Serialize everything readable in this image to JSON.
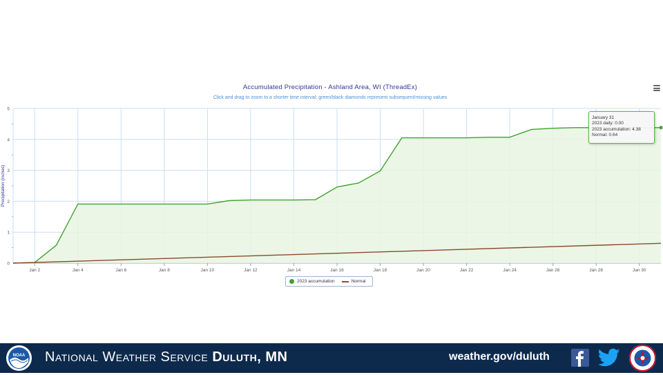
{
  "chart_data": {
    "type": "area",
    "title": "Accumulated Precipitation - Ashland Area, WI (ThreadEx)",
    "subtitle": "Click and drag to zoom to a shorter time interval; green/black diamonds represent subsequent/missing values",
    "ylabel": "Precipitation (inches)",
    "ylim": [
      0,
      5
    ],
    "yticks": [
      0,
      1,
      2,
      3,
      4,
      5
    ],
    "xlim": [
      1,
      31
    ],
    "xticks": [
      2,
      4,
      6,
      8,
      10,
      12,
      14,
      16,
      18,
      20,
      22,
      24,
      26,
      28,
      30
    ],
    "xtick_labels": [
      "Jan 2",
      "Jan 4",
      "Jan 6",
      "Jan 8",
      "Jan 10",
      "Jan 12",
      "Jan 14",
      "Jan 16",
      "Jan 18",
      "Jan 20",
      "Jan 22",
      "Jan 24",
      "Jan 26",
      "Jan 28",
      "Jan 30"
    ],
    "grid": true,
    "legend_position": "bottom-center",
    "series": [
      {
        "name": "2023 accumulation",
        "color": "#3ea32d",
        "fill": "#e8f4e2",
        "x": [
          1,
          2,
          3,
          4,
          5,
          6,
          7,
          8,
          9,
          10,
          11,
          12,
          13,
          14,
          15,
          16,
          17,
          18,
          19,
          20,
          21,
          22,
          23,
          24,
          25,
          26,
          27,
          28,
          29,
          30,
          31
        ],
        "values": [
          0.0,
          0.02,
          0.58,
          1.91,
          1.91,
          1.91,
          1.91,
          1.91,
          1.91,
          1.91,
          2.02,
          2.04,
          2.04,
          2.04,
          2.05,
          2.46,
          2.59,
          2.98,
          4.05,
          4.05,
          4.05,
          4.05,
          4.07,
          4.07,
          4.32,
          4.36,
          4.38,
          4.38,
          4.38,
          4.38,
          4.38
        ]
      },
      {
        "name": "Normal",
        "color": "#8b4a2b",
        "x": [
          1,
          31
        ],
        "values": [
          0.0,
          0.64
        ]
      }
    ],
    "tooltip": {
      "header": "January 31",
      "lines": [
        "2023 daily: 0.00",
        "2023 accumulation: 4.38",
        "Normal: 0.64"
      ]
    }
  },
  "footer": {
    "org_prefix": "National Weather Service",
    "org_office": "Duluth, MN",
    "url": "weather.gov/duluth",
    "noaa_logo_text": "NOAA",
    "icons": [
      "noaa-logo",
      "facebook-icon",
      "twitter-icon",
      "nws-logo"
    ]
  },
  "menu_icon": "hamburger-menu-icon"
}
